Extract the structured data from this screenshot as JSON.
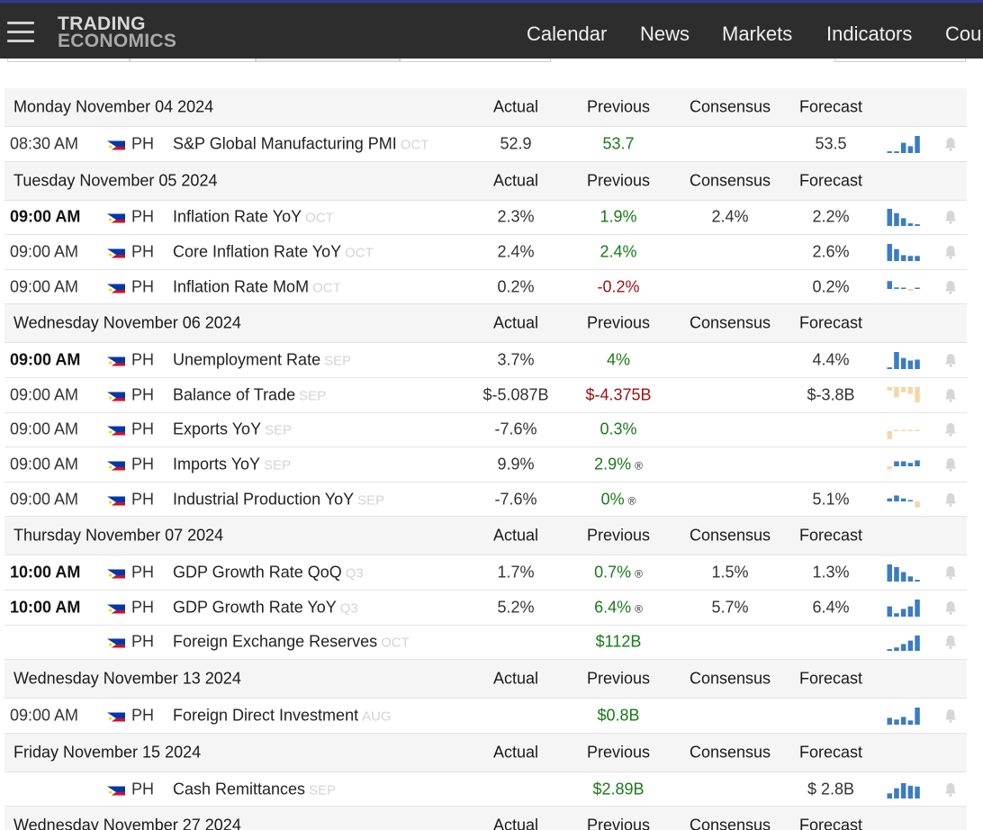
{
  "header": {
    "logo_line1": "TRADING",
    "logo_line2": "ECONOMICS",
    "nav": [
      "Calendar",
      "News",
      "Markets",
      "Indicators",
      "Cou"
    ]
  },
  "colors": {
    "positive": "#1a7a1a",
    "negative": "#9b1010",
    "spark_blue": "#3b7cc4",
    "spark_tan": "#f3d7a8",
    "flag_blue": "#0038a8",
    "flag_red": "#ce1126"
  },
  "columns": {
    "actual": "Actual",
    "previous": "Previous",
    "consensus": "Consensus",
    "forecast": "Forecast"
  },
  "groups": [
    {
      "date": "Monday November 04 2024",
      "events": [
        {
          "time": "08:30 AM",
          "bold": false,
          "country": "PH",
          "event": "S&P Global Manufacturing PMI",
          "period": "OCT",
          "actual": "52.9",
          "previous": "53.7",
          "previous_color": "green",
          "revised": false,
          "consensus": "",
          "forecast": "53.5",
          "spark": [
            0.1,
            0.1,
            0.6,
            0.4,
            1.0
          ],
          "spark_color": "spark_blue",
          "spark_icon": "sparkline-icon",
          "bell_icon": "bell-icon"
        }
      ]
    },
    {
      "date": "Tuesday November 05 2024",
      "events": [
        {
          "time": "09:00 AM",
          "bold": true,
          "country": "PH",
          "event": "Inflation Rate YoY",
          "period": "OCT",
          "actual": "2.3%",
          "previous": "1.9%",
          "previous_color": "green",
          "revised": false,
          "consensus": "2.4%",
          "forecast": "2.2%",
          "spark": [
            1.0,
            0.75,
            0.45,
            0.15,
            0.1
          ],
          "spark_color": "spark_blue",
          "spark_icon": "sparkline-icon",
          "bell_icon": "bell-icon"
        },
        {
          "time": "09:00 AM",
          "bold": false,
          "country": "PH",
          "event": "Core Inflation Rate YoY",
          "period": "OCT",
          "actual": "2.4%",
          "previous": "2.4%",
          "previous_color": "green",
          "revised": false,
          "consensus": "",
          "forecast": "2.6%",
          "spark": [
            1.0,
            0.7,
            0.35,
            0.3,
            0.3
          ],
          "spark_color": "spark_blue",
          "spark_icon": "sparkline-icon",
          "bell_icon": "bell-icon"
        },
        {
          "time": "09:00 AM",
          "bold": false,
          "country": "PH",
          "event": "Inflation Rate MoM",
          "period": "OCT",
          "actual": "0.2%",
          "previous": "-0.2%",
          "previous_color": "red",
          "revised": false,
          "consensus": "",
          "forecast": "0.2%",
          "spark": [
            0.8,
            0.15,
            0.1,
            -0.2,
            0.1
          ],
          "spark_color": "spark_blue",
          "spark_icon": "sparkline-icon",
          "bell_icon": "bell-icon"
        }
      ]
    },
    {
      "date": "Wednesday November 06 2024",
      "events": [
        {
          "time": "09:00 AM",
          "bold": true,
          "country": "PH",
          "event": "Unemployment Rate",
          "period": "SEP",
          "actual": "3.7%",
          "previous": "4%",
          "previous_color": "green",
          "revised": false,
          "consensus": "",
          "forecast": "4.4%",
          "spark": [
            0.1,
            1.0,
            0.65,
            0.5,
            0.55
          ],
          "spark_color": "spark_blue",
          "spark_icon": "sparkline-icon",
          "bell_icon": "bell-icon"
        },
        {
          "time": "09:00 AM",
          "bold": false,
          "country": "PH",
          "event": "Balance of Trade",
          "period": "SEP",
          "actual": "$-5.087B",
          "previous": "$-4.375B",
          "previous_color": "red",
          "revised": false,
          "consensus": "",
          "forecast": "$-3.8B",
          "spark": [
            -0.2,
            -0.6,
            -0.3,
            -0.4,
            -0.9
          ],
          "spark_color": "spark_tan",
          "spark_icon": "sparkline-icon",
          "bell_icon": "bell-icon"
        },
        {
          "time": "09:00 AM",
          "bold": false,
          "country": "PH",
          "event": "Exports YoY",
          "period": "SEP",
          "actual": "-7.6%",
          "previous": "0.3%",
          "previous_color": "green",
          "revised": false,
          "consensus": "",
          "forecast": "",
          "spark": [
            -0.8,
            0.05,
            0.05,
            0.05,
            0.1
          ],
          "spark_color": "spark_tan",
          "spark_icon": "sparkline-icon",
          "bell_icon": "bell-icon"
        },
        {
          "time": "09:00 AM",
          "bold": false,
          "country": "PH",
          "event": "Imports YoY",
          "period": "SEP",
          "actual": "9.9%",
          "previous": "2.9%",
          "previous_color": "green",
          "revised": true,
          "consensus": "",
          "forecast": "",
          "spark": [
            -0.3,
            0.5,
            0.5,
            0.35,
            0.6
          ],
          "spark_color": "spark_blue",
          "spark_icon": "sparkline-icon",
          "bell_icon": "bell-icon"
        },
        {
          "time": "09:00 AM",
          "bold": false,
          "country": "PH",
          "event": "Industrial Production YoY",
          "period": "SEP",
          "actual": "-7.6%",
          "previous": "0%",
          "previous_color": "green",
          "revised": true,
          "consensus": "",
          "forecast": "5.1%",
          "spark": [
            0.3,
            0.6,
            0.3,
            0.1,
            -0.6
          ],
          "spark_color": "spark_blue",
          "spark_icon": "sparkline-icon",
          "bell_icon": "bell-icon"
        }
      ]
    },
    {
      "date": "Thursday November 07 2024",
      "events": [
        {
          "time": "10:00 AM",
          "bold": true,
          "country": "PH",
          "event": "GDP Growth Rate QoQ",
          "period": "Q3",
          "actual": "1.7%",
          "previous": "0.7%",
          "previous_color": "green",
          "revised": true,
          "consensus": "1.5%",
          "forecast": "1.3%",
          "spark": [
            1.0,
            0.85,
            0.55,
            0.3,
            0.1
          ],
          "spark_color": "spark_blue",
          "spark_icon": "sparkline-icon",
          "bell_icon": "bell-icon"
        },
        {
          "time": "10:00 AM",
          "bold": true,
          "country": "PH",
          "event": "GDP Growth Rate YoY",
          "period": "Q3",
          "actual": "5.2%",
          "previous": "6.4%",
          "previous_color": "green",
          "revised": true,
          "consensus": "5.7%",
          "forecast": "6.4%",
          "spark": [
            0.6,
            0.2,
            0.45,
            0.6,
            1.0
          ],
          "spark_color": "spark_blue",
          "spark_icon": "sparkline-icon",
          "bell_icon": "bell-icon"
        },
        {
          "time": "",
          "bold": false,
          "country": "PH",
          "event": "Foreign Exchange Reserves",
          "period": "OCT",
          "actual": "",
          "previous": "$112B",
          "previous_color": "green",
          "revised": false,
          "consensus": "",
          "forecast": "",
          "spark": [
            0.1,
            0.2,
            0.4,
            0.6,
            0.9
          ],
          "spark_color": "spark_blue",
          "spark_icon": "sparkline-icon",
          "bell_icon": "bell-icon"
        }
      ]
    },
    {
      "date": "Wednesday November 13 2024",
      "events": [
        {
          "time": "09:00 AM",
          "bold": false,
          "country": "PH",
          "event": "Foreign Direct Investment",
          "period": "AUG",
          "actual": "",
          "previous": "$0.8B",
          "previous_color": "green",
          "revised": false,
          "consensus": "",
          "forecast": "",
          "spark": [
            0.4,
            0.3,
            0.45,
            0.25,
            1.0
          ],
          "spark_color": "spark_blue",
          "spark_icon": "sparkline-icon",
          "bell_icon": "bell-icon"
        }
      ]
    },
    {
      "date": "Friday November 15 2024",
      "events": [
        {
          "time": "",
          "bold": false,
          "country": "PH",
          "event": "Cash Remittances",
          "period": "SEP",
          "actual": "",
          "previous": "$2.89B",
          "previous_color": "green",
          "revised": false,
          "consensus": "",
          "forecast": "$ 2.8B",
          "spark": [
            0.3,
            0.6,
            0.9,
            0.75,
            0.7
          ],
          "spark_color": "spark_blue",
          "spark_icon": "sparkline-icon",
          "bell_icon": "bell-icon"
        }
      ]
    },
    {
      "date": "Wednesday November 27 2024",
      "events": []
    }
  ]
}
